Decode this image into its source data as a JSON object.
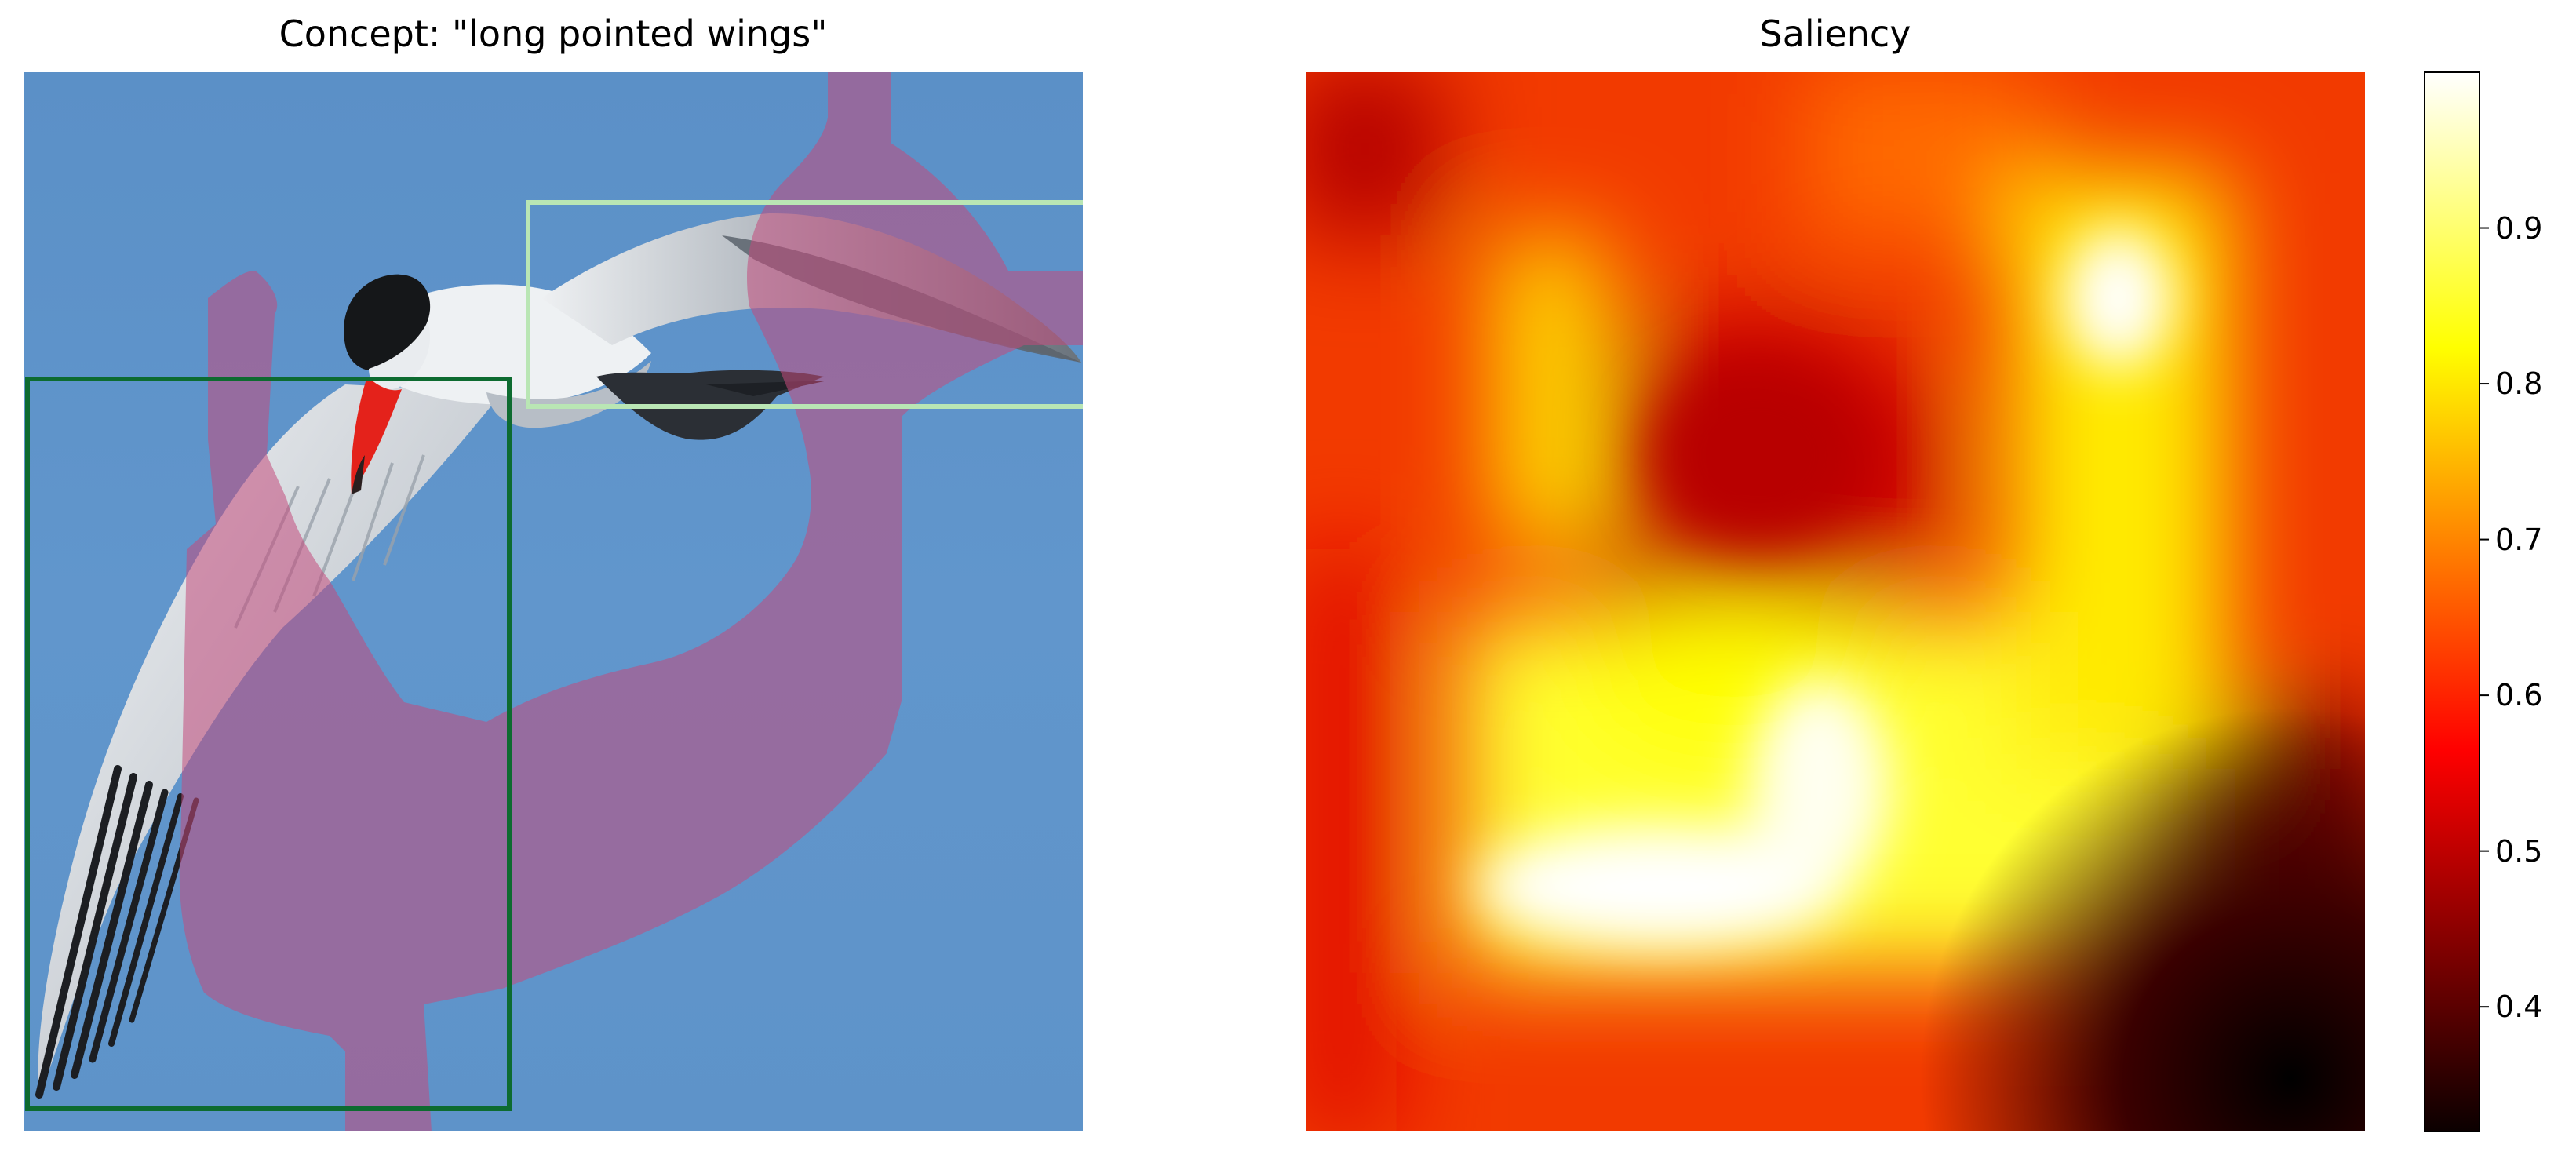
{
  "left_panel": {
    "title": "Concept: \"long pointed wings\"",
    "colors": {
      "sky": "#5e93c9",
      "mask": "#8e5f83",
      "box_dark": "#0d6b30",
      "box_light": "#b9e6b4",
      "bird_white": "#eef1f3",
      "bird_gray": "#77808a",
      "bird_black": "#1a1c20",
      "beak": "#e4221b"
    }
  },
  "right_panel": {
    "title": "Saliency",
    "colormap": "hot",
    "colorbar": {
      "min": 0.32,
      "max": 1.0,
      "ticks": [
        {
          "value": 0.4,
          "label": "0.4"
        },
        {
          "value": 0.5,
          "label": "0.5"
        },
        {
          "value": 0.6,
          "label": "0.6"
        },
        {
          "value": 0.7,
          "label": "0.7"
        },
        {
          "value": 0.8,
          "label": "0.8"
        },
        {
          "value": 0.9,
          "label": "0.9"
        }
      ]
    }
  }
}
